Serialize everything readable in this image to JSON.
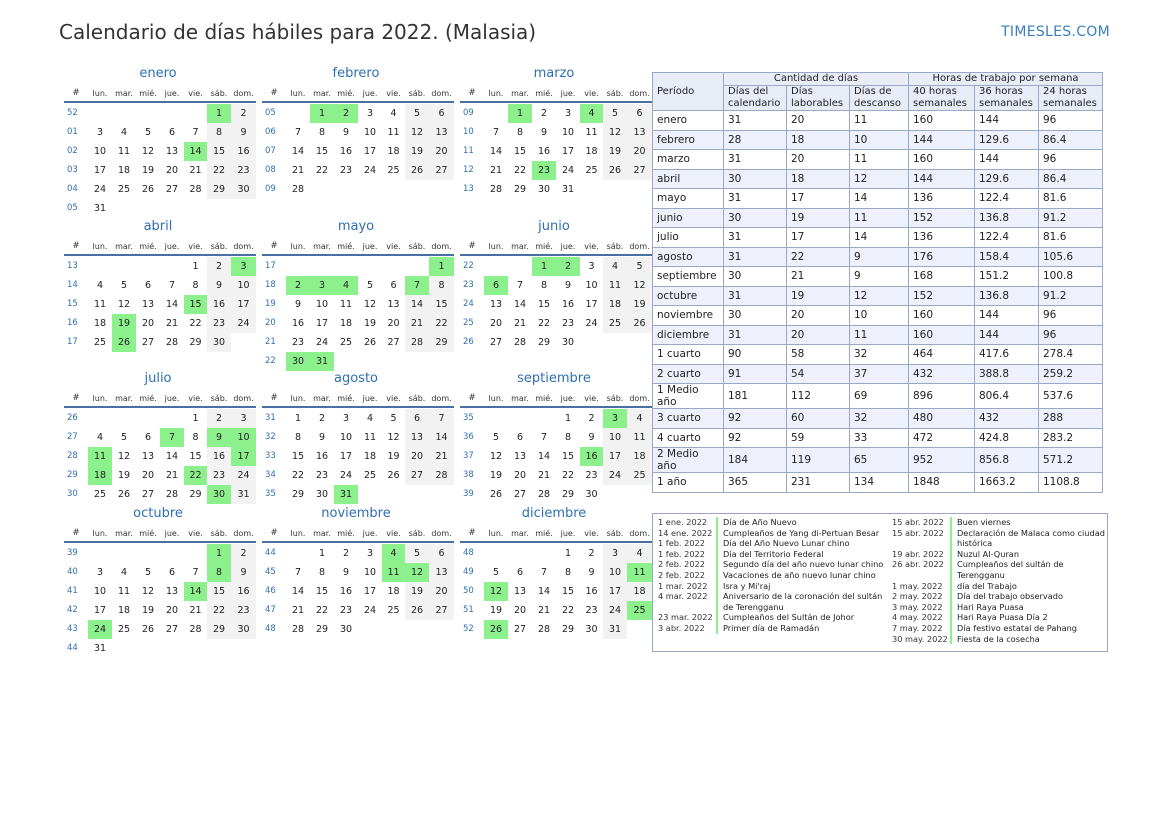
{
  "header": {
    "title": "Calendario de días hábiles para 2022. (Malasia)",
    "brand": "TIMESLES.COM"
  },
  "weekday_headers": [
    "#",
    "lun.",
    "mar.",
    "mié.",
    "jue.",
    "vie.",
    "sáb.",
    "dom."
  ],
  "months": [
    {
      "name": "enero",
      "start": 5,
      "days": 31,
      "weeks": [
        "52",
        "01",
        "02",
        "03",
        "04",
        "05"
      ],
      "holidays": [
        1,
        14
      ]
    },
    {
      "name": "febrero",
      "start": 1,
      "days": 28,
      "weeks": [
        "05",
        "06",
        "07",
        "08",
        "09"
      ],
      "holidays": [
        1,
        2
      ]
    },
    {
      "name": "marzo",
      "start": 1,
      "days": 31,
      "weeks": [
        "09",
        "10",
        "11",
        "12",
        "13"
      ],
      "holidays": [
        1,
        4,
        23
      ]
    },
    {
      "name": "abril",
      "start": 4,
      "days": 30,
      "weeks": [
        "13",
        "14",
        "15",
        "16",
        "17"
      ],
      "holidays": [
        3,
        15,
        19,
        26
      ]
    },
    {
      "name": "mayo",
      "start": 6,
      "days": 31,
      "weeks": [
        "17",
        "18",
        "19",
        "20",
        "21",
        "22"
      ],
      "holidays": [
        1,
        2,
        3,
        4,
        7,
        30,
        31
      ]
    },
    {
      "name": "junio",
      "start": 2,
      "days": 30,
      "weeks": [
        "22",
        "23",
        "24",
        "25",
        "26"
      ],
      "holidays": [
        1,
        2,
        6
      ]
    },
    {
      "name": "julio",
      "start": 4,
      "days": 31,
      "weeks": [
        "26",
        "27",
        "28",
        "29",
        "30"
      ],
      "holidays": [
        7,
        9,
        10,
        11,
        17,
        18,
        22,
        30
      ]
    },
    {
      "name": "agosto",
      "start": 0,
      "days": 31,
      "weeks": [
        "31",
        "32",
        "33",
        "34",
        "35"
      ],
      "holidays": [
        31
      ]
    },
    {
      "name": "septiembre",
      "start": 3,
      "days": 30,
      "weeks": [
        "35",
        "36",
        "37",
        "38",
        "39"
      ],
      "holidays": [
        3,
        16
      ]
    },
    {
      "name": "octubre",
      "start": 5,
      "days": 31,
      "weeks": [
        "39",
        "40",
        "41",
        "42",
        "43",
        "44"
      ],
      "holidays": [
        1,
        8,
        14,
        24
      ]
    },
    {
      "name": "noviembre",
      "start": 1,
      "days": 30,
      "weeks": [
        "44",
        "45",
        "46",
        "47",
        "48"
      ],
      "holidays": [
        4,
        11,
        12
      ]
    },
    {
      "name": "diciembre",
      "start": 3,
      "days": 31,
      "weeks": [
        "48",
        "49",
        "50",
        "51",
        "52"
      ],
      "holidays": [
        11,
        12,
        25,
        26
      ]
    }
  ],
  "summary": {
    "period_header": "Período",
    "group1": "Cantidad de días",
    "group2": "Horas de trabajo por semana",
    "cols": [
      "Días del calendario",
      "Días laborables",
      "Días de descanso",
      "40 horas semanales",
      "36 horas semanales",
      "24 horas semanales"
    ],
    "rows": [
      [
        "enero",
        "31",
        "20",
        "11",
        "160",
        "144",
        "96"
      ],
      [
        "febrero",
        "28",
        "18",
        "10",
        "144",
        "129.6",
        "86.4"
      ],
      [
        "marzo",
        "31",
        "20",
        "11",
        "160",
        "144",
        "96"
      ],
      [
        "abril",
        "30",
        "18",
        "12",
        "144",
        "129.6",
        "86.4"
      ],
      [
        "mayo",
        "31",
        "17",
        "14",
        "136",
        "122.4",
        "81.6"
      ],
      [
        "junio",
        "30",
        "19",
        "11",
        "152",
        "136.8",
        "91.2"
      ],
      [
        "julio",
        "31",
        "17",
        "14",
        "136",
        "122.4",
        "81.6"
      ],
      [
        "agosto",
        "31",
        "22",
        "9",
        "176",
        "158.4",
        "105.6"
      ],
      [
        "septiembre",
        "30",
        "21",
        "9",
        "168",
        "151.2",
        "100.8"
      ],
      [
        "octubre",
        "31",
        "19",
        "12",
        "152",
        "136.8",
        "91.2"
      ],
      [
        "noviembre",
        "30",
        "20",
        "10",
        "160",
        "144",
        "96"
      ],
      [
        "diciembre",
        "31",
        "20",
        "11",
        "160",
        "144",
        "96"
      ],
      [
        "1 cuarto",
        "90",
        "58",
        "32",
        "464",
        "417.6",
        "278.4"
      ],
      [
        "2 cuarto",
        "91",
        "54",
        "37",
        "432",
        "388.8",
        "259.2"
      ],
      [
        "1 Medio año",
        "181",
        "112",
        "69",
        "896",
        "806.4",
        "537.6"
      ],
      [
        "3 cuarto",
        "92",
        "60",
        "32",
        "480",
        "432",
        "288"
      ],
      [
        "4 cuarto",
        "92",
        "59",
        "33",
        "472",
        "424.8",
        "283.2"
      ],
      [
        "2 Medio año",
        "184",
        "119",
        "65",
        "952",
        "856.8",
        "571.2"
      ],
      [
        "1 año",
        "365",
        "231",
        "134",
        "1848",
        "1663.2",
        "1108.8"
      ]
    ]
  },
  "holidays_left": [
    {
      "date": "1 ene. 2022",
      "name": "Día de Año Nuevo"
    },
    {
      "date": "14 ene. 2022",
      "name": "Cumpleaños de Yang di-Pertuan Besar"
    },
    {
      "date": "1 feb. 2022",
      "name": "Día del Año Nuevo Lunar chino"
    },
    {
      "date": "1 feb. 2022",
      "name": "Día del Territorio Federal"
    },
    {
      "date": "2 feb. 2022",
      "name": "Segundo día del año nuevo lunar chino"
    },
    {
      "date": "2 feb. 2022",
      "name": "Vacaciones de año nuevo lunar chino"
    },
    {
      "date": "1 mar. 2022",
      "name": "Isra y Mi'raj"
    },
    {
      "date": "4 mar. 2022",
      "name": "Aniversario de la coronación del sultán de Terengganu"
    },
    {
      "date": "23 mar. 2022",
      "name": "Cumpleaños del Sultán de Johor"
    },
    {
      "date": "3 abr. 2022",
      "name": "Primer día de Ramadán"
    }
  ],
  "holidays_right": [
    {
      "date": "15 abr. 2022",
      "name": "Buen viernes"
    },
    {
      "date": "15 abr. 2022",
      "name": "Declaración de Malaca como ciudad histórica"
    },
    {
      "date": "19 abr. 2022",
      "name": "Nuzul Al-Quran"
    },
    {
      "date": "26 abr. 2022",
      "name": "Cumpleaños del sultán de Terengganu"
    },
    {
      "date": "1 may. 2022",
      "name": "día del Trabajo"
    },
    {
      "date": "2 may. 2022",
      "name": "Día del trabajo observado"
    },
    {
      "date": "3 may. 2022",
      "name": "Hari Raya Puasa"
    },
    {
      "date": "4 may. 2022",
      "name": "Hari Raya Puasa Día 2"
    },
    {
      "date": "7 may. 2022",
      "name": "Día festivo estatal de Pahang"
    },
    {
      "date": "30 may. 2022",
      "name": "Fiesta de la cosecha"
    }
  ],
  "colors": {
    "holiday": "#8cf08c",
    "weekend": "#f2f2f2",
    "accent": "#2e6fb3",
    "table_alt": "#eef0fb"
  }
}
